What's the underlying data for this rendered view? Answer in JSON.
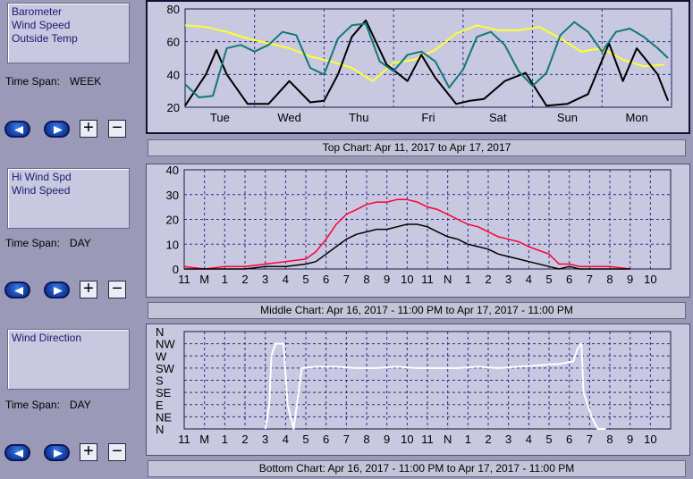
{
  "colors": {
    "background": "#9a9ab8",
    "panel": "#c8c8e0",
    "grid": "#2c2c8c",
    "barometer": "#ffff30",
    "wind_speed": "#000000",
    "outside_temp": "#107878",
    "hi_wind_speed": "#ff0033",
    "wind_direction": "#ffffff"
  },
  "sidebar": [
    {
      "legend": [
        "Barometer",
        "Wind Speed",
        "Outside Temp"
      ],
      "span_label": "Time Span:",
      "span_value": "WEEK",
      "plus": "+",
      "minus": "−"
    },
    {
      "legend": [
        "Hi Wind Spd",
        "Wind Speed"
      ],
      "span_label": "Time Span:",
      "span_value": "DAY",
      "plus": "+",
      "minus": "−"
    },
    {
      "legend": [
        "Wind Direction"
      ],
      "span_label": "Time Span:",
      "span_value": "DAY",
      "plus": "+",
      "minus": "−"
    }
  ],
  "captions": {
    "top": "Top Chart:  Apr 11, 2017  to  Apr 17, 2017",
    "middle": "Middle Chart:  Apr 16, 2017 - 11:00 PM  to  Apr 17, 2017 - 11:00 PM",
    "bottom": "Bottom Chart:  Apr 16, 2017 - 11:00 PM  to  Apr 17, 2017 - 11:00 PM"
  },
  "chart_data": [
    {
      "type": "line",
      "xlabel": "",
      "ylabel": "",
      "x_tick_labels": [
        "Tue",
        "Wed",
        "Thu",
        "Fri",
        "Sat",
        "Sun",
        "Mon"
      ],
      "y_ticks": [
        20,
        40,
        60,
        80
      ],
      "ylim": [
        20,
        80
      ],
      "xlim": [
        0,
        7
      ],
      "grid": true,
      "series": [
        {
          "name": "Barometer",
          "x": [
            0,
            0.3,
            0.6,
            0.9,
            1.2,
            1.5,
            1.8,
            2.1,
            2.4,
            2.7,
            3.0,
            3.3,
            3.6,
            3.9,
            4.2,
            4.5,
            4.8,
            5.1,
            5.4,
            5.7,
            6.0,
            6.3,
            6.6,
            6.9
          ],
          "values": [
            70,
            69,
            66,
            62,
            59,
            56,
            51,
            48,
            44,
            36,
            47,
            49,
            55,
            65,
            70,
            67,
            67,
            69,
            62,
            54,
            56,
            49,
            45,
            46
          ]
        },
        {
          "name": "Wind Speed",
          "x": [
            0,
            0.3,
            0.45,
            0.6,
            0.9,
            1.2,
            1.5,
            1.8,
            2.0,
            2.2,
            2.4,
            2.6,
            2.9,
            3.2,
            3.4,
            3.6,
            3.9,
            4.1,
            4.3,
            4.6,
            4.9,
            5.2,
            5.5,
            5.8,
            6.1,
            6.3,
            6.5,
            6.8,
            6.95
          ],
          "values": [
            21,
            40,
            55,
            40,
            22,
            22,
            36,
            23,
            24,
            40,
            63,
            73,
            46,
            36,
            52,
            38,
            22,
            24,
            25,
            36,
            41,
            21,
            22,
            28,
            59,
            36,
            56,
            40,
            24
          ]
        },
        {
          "name": "Outside Temp",
          "x": [
            0,
            0.2,
            0.4,
            0.6,
            0.8,
            1.0,
            1.2,
            1.4,
            1.6,
            1.8,
            2.0,
            2.2,
            2.4,
            2.6,
            2.8,
            3.0,
            3.2,
            3.4,
            3.6,
            3.8,
            4.0,
            4.2,
            4.4,
            4.6,
            4.8,
            5.0,
            5.2,
            5.4,
            5.6,
            5.8,
            6.0,
            6.2,
            6.4,
            6.6,
            6.8,
            6.95
          ],
          "values": [
            34,
            26,
            27,
            56,
            58,
            54,
            58,
            66,
            64,
            44,
            40,
            62,
            70,
            71,
            48,
            42,
            52,
            54,
            48,
            32,
            43,
            63,
            66,
            58,
            42,
            33,
            41,
            64,
            72,
            66,
            54,
            66,
            68,
            63,
            56,
            50
          ]
        }
      ]
    },
    {
      "type": "line",
      "xlabel": "",
      "ylabel": "",
      "x_tick_labels": [
        "11",
        "M",
        "1",
        "2",
        "3",
        "4",
        "5",
        "6",
        "7",
        "8",
        "9",
        "10",
        "11",
        "N",
        "1",
        "2",
        "3",
        "4",
        "5",
        "6",
        "7",
        "8",
        "9",
        "10"
      ],
      "y_ticks": [
        0,
        10,
        20,
        30,
        40
      ],
      "ylim": [
        0,
        40
      ],
      "xlim": [
        0,
        24
      ],
      "grid": true,
      "series": [
        {
          "name": "Hi Wind Spd",
          "x": [
            0,
            1,
            2,
            3,
            4,
            5,
            6,
            6.5,
            7,
            7.5,
            8,
            8.5,
            9,
            9.5,
            10,
            10.5,
            11,
            11.5,
            12,
            12.5,
            13,
            13.5,
            14,
            14.5,
            15,
            15.5,
            16,
            16.5,
            17,
            18,
            18.5,
            19,
            19.5,
            20,
            21,
            22
          ],
          "values": [
            1,
            0,
            1,
            1,
            2,
            3,
            4,
            7,
            12,
            18,
            22,
            24,
            26,
            27,
            27,
            28,
            28,
            27,
            25,
            24,
            22,
            20,
            18,
            17,
            15,
            13,
            12,
            11,
            9,
            6,
            2,
            2,
            1,
            1,
            1,
            0
          ]
        },
        {
          "name": "Wind Speed",
          "x": [
            0,
            1,
            2,
            3,
            4,
            5,
            6,
            6.5,
            7,
            7.5,
            8,
            8.5,
            9,
            9.5,
            10,
            10.5,
            11,
            11.5,
            12,
            12.5,
            13,
            13.5,
            14,
            14.5,
            15,
            15.5,
            16,
            16.5,
            17,
            18,
            18.5,
            19,
            19.5,
            20,
            21,
            22
          ],
          "values": [
            0,
            0,
            0,
            0,
            1,
            1,
            2,
            3,
            6,
            9,
            12,
            14,
            15,
            16,
            16,
            17,
            18,
            18,
            17,
            15,
            13,
            12,
            10,
            9,
            8,
            6,
            5,
            4,
            3,
            1,
            0,
            1,
            0,
            0,
            0,
            0
          ]
        }
      ]
    },
    {
      "type": "line",
      "xlabel": "",
      "ylabel": "",
      "x_tick_labels": [
        "11",
        "M",
        "1",
        "2",
        "3",
        "4",
        "5",
        "6",
        "7",
        "8",
        "9",
        "10",
        "11",
        "N",
        "1",
        "2",
        "3",
        "4",
        "5",
        "6",
        "7",
        "8",
        "9",
        "10"
      ],
      "y_tick_labels": [
        "N",
        "NW",
        "W",
        "SW",
        "S",
        "SE",
        "E",
        "NE",
        "N"
      ],
      "ylim": [
        0,
        360
      ],
      "xlim": [
        0,
        24
      ],
      "grid": true,
      "series": [
        {
          "name": "Wind Direction",
          "x": [
            4,
            4.2,
            4.3,
            4.5,
            4.7,
            4.9,
            5.1,
            5.4,
            5.8,
            6.5,
            7.5,
            8.5,
            9.5,
            10.5,
            11.5,
            12.5,
            13.5,
            14.5,
            15.5,
            16.5,
            17.5,
            18.5,
            19.2,
            19.4,
            19.6,
            19.7,
            19.9,
            20.1,
            20.4,
            20.8
          ],
          "values": [
            0,
            90,
            270,
            315,
            315,
            315,
            90,
            0,
            225,
            230,
            230,
            225,
            225,
            230,
            225,
            225,
            225,
            230,
            225,
            230,
            235,
            240,
            250,
            295,
            315,
            135,
            90,
            45,
            0,
            0
          ]
        }
      ]
    }
  ]
}
